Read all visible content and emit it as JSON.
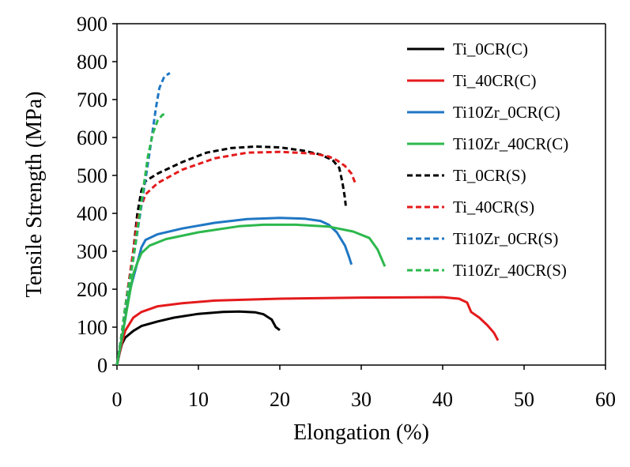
{
  "chart_data": {
    "type": "line",
    "title": "",
    "xlabel": "Elongation (%)",
    "ylabel": "Tensile Strength (MPa)",
    "xlim": [
      0,
      60
    ],
    "ylim": [
      0,
      900
    ],
    "xticks": [
      "0",
      "10",
      "20",
      "30",
      "40",
      "50",
      "60"
    ],
    "yticks": [
      "0",
      "100",
      "200",
      "300",
      "400",
      "500",
      "600",
      "700",
      "800",
      "900"
    ],
    "grid": false,
    "legend_position": "right",
    "series": [
      {
        "name": "Ti_0CR(C)",
        "color": "#000000",
        "dash": "solid",
        "points": [
          [
            0,
            0
          ],
          [
            0.3,
            30
          ],
          [
            0.6,
            55
          ],
          [
            1.0,
            72
          ],
          [
            2,
            90
          ],
          [
            3,
            103
          ],
          [
            5,
            115
          ],
          [
            7,
            125
          ],
          [
            10,
            135
          ],
          [
            13,
            140
          ],
          [
            15,
            141
          ],
          [
            17,
            139
          ],
          [
            18,
            134
          ],
          [
            19,
            120
          ],
          [
            19.5,
            100
          ],
          [
            20,
            92
          ]
        ]
      },
      {
        "name": "Ti_40CR(C)",
        "color": "#e41a1c",
        "dash": "solid",
        "points": [
          [
            0,
            0
          ],
          [
            0.5,
            50
          ],
          [
            1,
            90
          ],
          [
            2,
            125
          ],
          [
            3,
            140
          ],
          [
            5,
            155
          ],
          [
            8,
            163
          ],
          [
            12,
            170
          ],
          [
            20,
            175
          ],
          [
            30,
            178
          ],
          [
            40,
            179
          ],
          [
            42,
            175
          ],
          [
            43,
            165
          ],
          [
            43.5,
            140
          ],
          [
            44.5,
            125
          ],
          [
            45.5,
            105
          ],
          [
            46.3,
            85
          ],
          [
            46.8,
            65
          ]
        ]
      },
      {
        "name": "Ti10Zr_0CR(C)",
        "color": "#1f77c4",
        "dash": "solid",
        "points": [
          [
            0,
            0
          ],
          [
            0.5,
            60
          ],
          [
            1,
            120
          ],
          [
            1.5,
            190
          ],
          [
            2.5,
            270
          ],
          [
            3,
            310
          ],
          [
            3.5,
            330
          ],
          [
            5,
            345
          ],
          [
            8,
            360
          ],
          [
            12,
            375
          ],
          [
            16,
            385
          ],
          [
            20,
            388
          ],
          [
            23,
            386
          ],
          [
            25,
            380
          ],
          [
            26,
            370
          ],
          [
            27,
            350
          ],
          [
            28,
            315
          ],
          [
            28.5,
            285
          ],
          [
            28.8,
            265
          ]
        ]
      },
      {
        "name": "Ti10Zr_40CR(C)",
        "color": "#2db84d",
        "dash": "solid",
        "points": [
          [
            0,
            0
          ],
          [
            0.5,
            60
          ],
          [
            1,
            120
          ],
          [
            1.5,
            180
          ],
          [
            2,
            240
          ],
          [
            2.5,
            270
          ],
          [
            3,
            295
          ],
          [
            4,
            315
          ],
          [
            6,
            332
          ],
          [
            10,
            350
          ],
          [
            15,
            366
          ],
          [
            18,
            370
          ],
          [
            22,
            370
          ],
          [
            26,
            365
          ],
          [
            29,
            352
          ],
          [
            31,
            335
          ],
          [
            32,
            305
          ],
          [
            32.5,
            280
          ],
          [
            32.9,
            260
          ]
        ]
      },
      {
        "name": "Ti_0CR(S)",
        "color": "#000000",
        "dash": "dashed",
        "points": [
          [
            0,
            0
          ],
          [
            0.5,
            70
          ],
          [
            1,
            150
          ],
          [
            2,
            300
          ],
          [
            2.5,
            400
          ],
          [
            3,
            460
          ],
          [
            3.5,
            485
          ],
          [
            5,
            505
          ],
          [
            8,
            535
          ],
          [
            11,
            560
          ],
          [
            14,
            572
          ],
          [
            17,
            576
          ],
          [
            20,
            574
          ],
          [
            23,
            565
          ],
          [
            25,
            555
          ],
          [
            26.5,
            540
          ],
          [
            27.3,
            520
          ],
          [
            27.7,
            480
          ],
          [
            28,
            440
          ],
          [
            28.1,
            420
          ]
        ]
      },
      {
        "name": "Ti_40CR(S)",
        "color": "#e41a1c",
        "dash": "dashed",
        "points": [
          [
            0,
            0
          ],
          [
            0.5,
            70
          ],
          [
            1,
            150
          ],
          [
            2,
            300
          ],
          [
            2.5,
            380
          ],
          [
            3,
            420
          ],
          [
            3.5,
            450
          ],
          [
            5,
            480
          ],
          [
            8,
            515
          ],
          [
            12,
            545
          ],
          [
            16,
            560
          ],
          [
            20,
            562
          ],
          [
            24,
            558
          ],
          [
            26,
            550
          ],
          [
            27,
            540
          ],
          [
            28,
            525
          ],
          [
            28.8,
            505
          ],
          [
            29.3,
            478
          ]
        ]
      },
      {
        "name": "Ti10Zr_0CR(S)",
        "color": "#1f77c4",
        "dash": "dashed",
        "points": [
          [
            0,
            0
          ],
          [
            0.5,
            70
          ],
          [
            1,
            150
          ],
          [
            2,
            280
          ],
          [
            3,
            420
          ],
          [
            4,
            560
          ],
          [
            4.8,
            680
          ],
          [
            5.2,
            730
          ],
          [
            5.8,
            760
          ],
          [
            6.5,
            770
          ]
        ]
      },
      {
        "name": "Ti10Zr_40CR(S)",
        "color": "#2db84d",
        "dash": "dashed",
        "points": [
          [
            0,
            0
          ],
          [
            0.5,
            70
          ],
          [
            1,
            150
          ],
          [
            2,
            280
          ],
          [
            3,
            430
          ],
          [
            3.8,
            550
          ],
          [
            4.4,
            610
          ],
          [
            5,
            645
          ],
          [
            5.6,
            660
          ],
          [
            6,
            662
          ]
        ]
      }
    ]
  }
}
